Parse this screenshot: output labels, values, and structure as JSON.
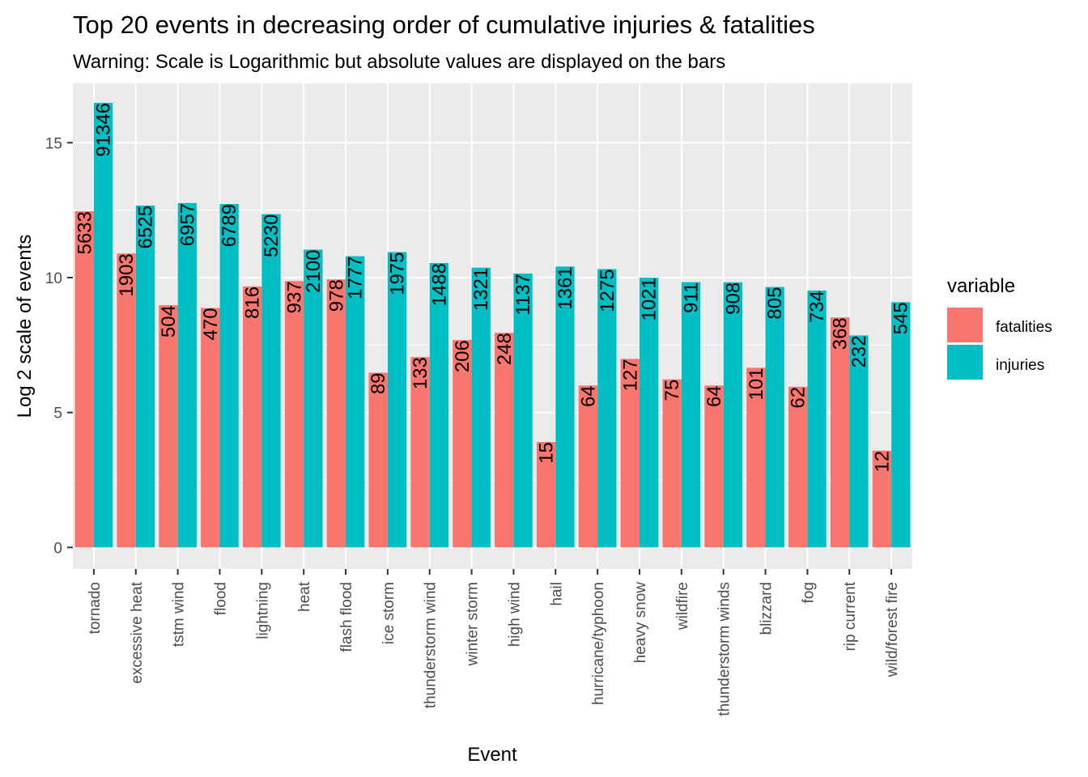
{
  "chart_data": {
    "type": "bar",
    "title": "Top 20 events in decreasing order of cumulative injuries & fatalities",
    "subtitle": "Warning: Scale is Logarithmic but absolute values are displayed on the bars",
    "xlabel": "Event",
    "ylabel": "Log 2 scale of events",
    "ylim": [
      -0.8,
      17.2
    ],
    "yticks": [
      0,
      5,
      10,
      15
    ],
    "grid": true,
    "legend": {
      "title": "variable",
      "position": "right"
    },
    "categories": [
      "tornado",
      "excessive heat",
      "tstm wind",
      "flood",
      "lightning",
      "heat",
      "flash flood",
      "ice storm",
      "thunderstorm wind",
      "winter storm",
      "high wind",
      "hail",
      "hurricane/typhoon",
      "heavy snow",
      "wildfire",
      "thunderstorm winds",
      "blizzard",
      "fog",
      "rip current",
      "wild/forest fire"
    ],
    "series": [
      {
        "name": "fatalities",
        "color": "#F8766D",
        "values": [
          5633,
          1903,
          504,
          470,
          816,
          937,
          978,
          89,
          133,
          206,
          248,
          15,
          64,
          127,
          75,
          64,
          101,
          62,
          368,
          12
        ]
      },
      {
        "name": "injuries",
        "color": "#00BFC4",
        "values": [
          91346,
          6525,
          6957,
          6789,
          5230,
          2100,
          1777,
          1975,
          1488,
          1321,
          1137,
          1361,
          1275,
          1021,
          911,
          908,
          805,
          734,
          232,
          545
        ]
      }
    ]
  }
}
